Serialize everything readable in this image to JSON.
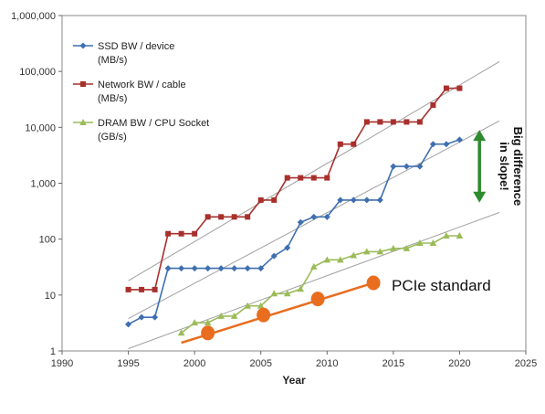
{
  "chart_data": {
    "type": "line",
    "title": "",
    "xlabel": "Year",
    "ylabel": "",
    "yscale": "log",
    "xlim": [
      1990,
      2025
    ],
    "ylim": [
      1,
      1000000
    ],
    "x_ticks": [
      "1990",
      "1995",
      "2000",
      "2005",
      "2010",
      "2015",
      "2020",
      "2025"
    ],
    "y_ticks": [
      "1",
      "10",
      "100",
      "1,000",
      "10,000",
      "100,000",
      "1,000,000"
    ],
    "grid": false,
    "legend_position": "top-left",
    "series": [
      {
        "name": "SSD BW / device",
        "unit": "(MB/s)",
        "color": "#3f6fb0",
        "marker": "diamond",
        "points": [
          [
            1995,
            3
          ],
          [
            1996,
            4
          ],
          [
            1997,
            4
          ],
          [
            1998,
            30
          ],
          [
            1999,
            30
          ],
          [
            2000,
            30
          ],
          [
            2001,
            30
          ],
          [
            2002,
            30
          ],
          [
            2003,
            30
          ],
          [
            2004,
            30
          ],
          [
            2005,
            30
          ],
          [
            2006,
            50
          ],
          [
            2007,
            70
          ],
          [
            2008,
            200
          ],
          [
            2009,
            250
          ],
          [
            2010,
            250
          ],
          [
            2011,
            500
          ],
          [
            2012,
            500
          ],
          [
            2013,
            500
          ],
          [
            2014,
            500
          ],
          [
            2015,
            2000
          ],
          [
            2016,
            2000
          ],
          [
            2017,
            2000
          ],
          [
            2018,
            5000
          ],
          [
            2019,
            5000
          ],
          [
            2020,
            6000
          ]
        ]
      },
      {
        "name": "Network BW / cable",
        "unit": "(MB/s)",
        "color": "#a8302c",
        "marker": "square",
        "points": [
          [
            1995,
            12.5
          ],
          [
            1996,
            12.5
          ],
          [
            1997,
            12.5
          ],
          [
            1998,
            125
          ],
          [
            1999,
            125
          ],
          [
            2000,
            125
          ],
          [
            2001,
            250
          ],
          [
            2002,
            250
          ],
          [
            2003,
            250
          ],
          [
            2004,
            250
          ],
          [
            2005,
            500
          ],
          [
            2006,
            500
          ],
          [
            2007,
            1250
          ],
          [
            2008,
            1250
          ],
          [
            2009,
            1250
          ],
          [
            2010,
            1250
          ],
          [
            2011,
            5000
          ],
          [
            2012,
            5000
          ],
          [
            2013,
            12500
          ],
          [
            2014,
            12500
          ],
          [
            2015,
            12500
          ],
          [
            2016,
            12500
          ],
          [
            2017,
            12500
          ],
          [
            2018,
            25000
          ],
          [
            2019,
            50000
          ],
          [
            2020,
            50000
          ]
        ]
      },
      {
        "name": "DRAM BW / CPU Socket",
        "unit": "(GB/s)",
        "color": "#9bbb59",
        "marker": "triangle",
        "points": [
          [
            1999,
            2.1
          ],
          [
            2000,
            3.2
          ],
          [
            2001,
            3.2
          ],
          [
            2002,
            4.2
          ],
          [
            2003,
            4.2
          ],
          [
            2004,
            6.4
          ],
          [
            2005,
            6.4
          ],
          [
            2006,
            10.6
          ],
          [
            2007,
            10.6
          ],
          [
            2008,
            12.8
          ],
          [
            2009,
            32
          ],
          [
            2010,
            42.6
          ],
          [
            2011,
            42.6
          ],
          [
            2012,
            51.2
          ],
          [
            2013,
            59.7
          ],
          [
            2014,
            59.7
          ],
          [
            2015,
            68.2
          ],
          [
            2016,
            68.2
          ],
          [
            2017,
            85
          ],
          [
            2018,
            85
          ],
          [
            2019,
            115
          ],
          [
            2020,
            115
          ]
        ]
      }
    ],
    "trend_lines": [
      {
        "color": "#a0a0a0",
        "from": [
          1995,
          18
        ],
        "to": [
          2023,
          150000
        ]
      },
      {
        "color": "#a0a0a0",
        "from": [
          1995,
          3.8
        ],
        "to": [
          2023,
          13000
        ]
      },
      {
        "color": "#a0a0a0",
        "from": [
          1995,
          1.1
        ],
        "to": [
          2023,
          300
        ]
      }
    ],
    "pcie": {
      "label": "PCIe standard",
      "color": "#e86d1f",
      "arrow_from": [
        1999,
        1.4
      ],
      "arrow_to": [
        2014,
        18
      ],
      "points": [
        [
          2001,
          2.1
        ],
        [
          2005.2,
          4.4
        ],
        [
          2009.3,
          8.5
        ],
        [
          2013.5,
          16.5
        ]
      ]
    },
    "slope_annotation": {
      "lines": [
        "Big difference",
        "in slope!"
      ],
      "color": "#2e8b2e",
      "year": 2021.5,
      "y_from": 450,
      "y_to": 9000
    }
  }
}
